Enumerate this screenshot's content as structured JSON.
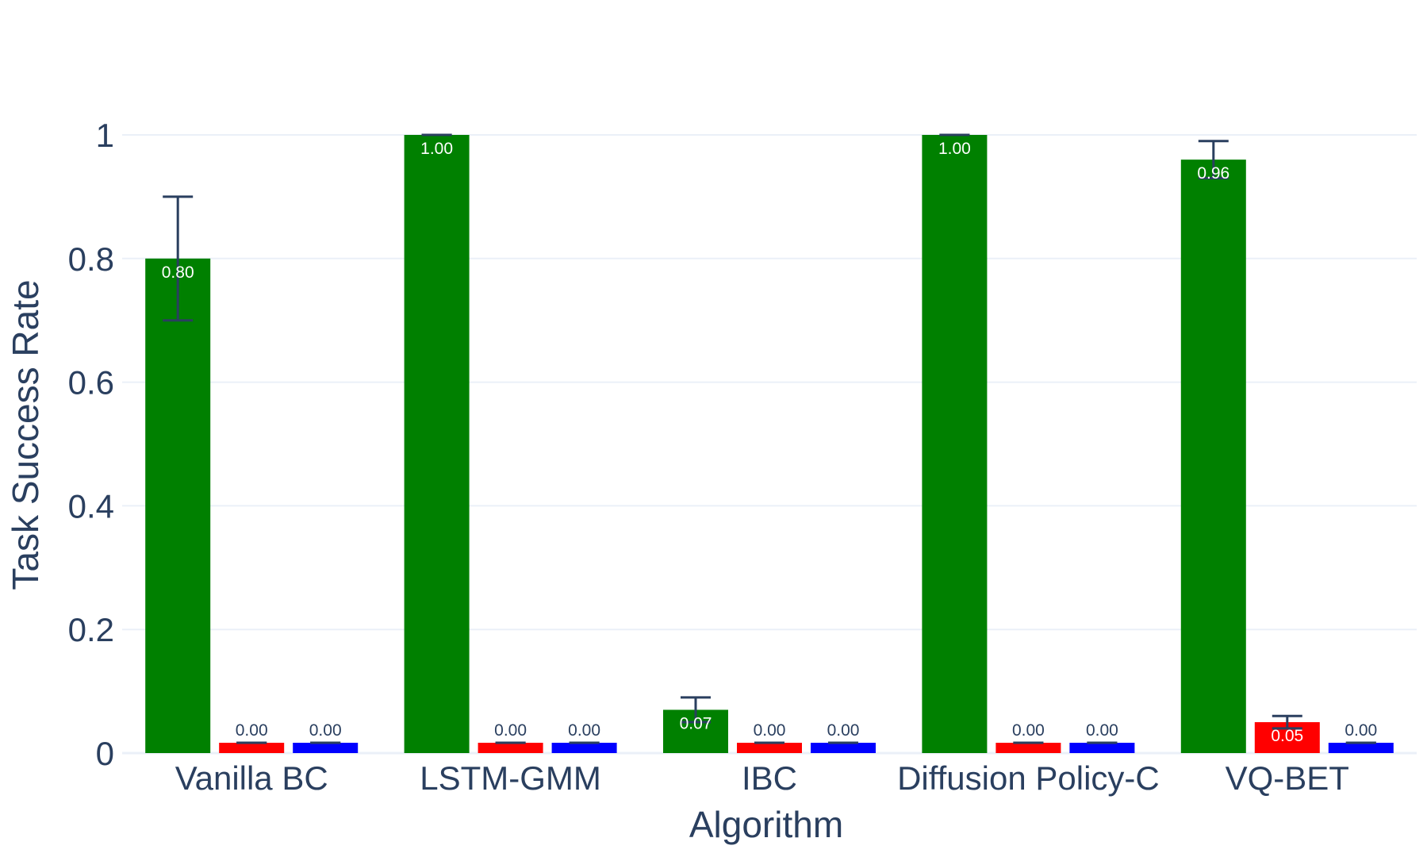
{
  "chart_data": {
    "type": "bar",
    "title": "",
    "xlabel": "Algorithm",
    "ylabel": "Task Success Rate",
    "categories": [
      "Vanilla BC",
      "LSTM-GMM",
      "IBC",
      "Diffusion Policy-C",
      "VQ-BET"
    ],
    "ylim": [
      0,
      1.0
    ],
    "yticks": [
      0,
      0.2,
      0.4,
      0.6,
      0.8,
      1
    ],
    "ytick_labels": [
      "0",
      "0.2",
      "0.4",
      "0.6",
      "0.8",
      "1"
    ],
    "grid": true,
    "legend": "none",
    "series": [
      {
        "color": "#008000",
        "values": [
          0.8,
          1.0,
          0.07,
          1.0,
          0.96
        ],
        "labels": [
          "0.80",
          "1.00",
          "0.07",
          "1.00",
          "0.96"
        ],
        "errors": [
          0.1,
          0.0,
          0.02,
          0.0,
          0.03
        ]
      },
      {
        "color": "#ff0000",
        "values": [
          0.0,
          0.0,
          0.0,
          0.0,
          0.05
        ],
        "labels": [
          "0.00",
          "0.00",
          "0.00",
          "0.00",
          "0.05"
        ],
        "errors": [
          0.0,
          0.0,
          0.0,
          0.0,
          0.01
        ]
      },
      {
        "color": "#0000ff",
        "values": [
          0.0,
          0.0,
          0.0,
          0.0,
          0.0
        ],
        "labels": [
          "0.00",
          "0.00",
          "0.00",
          "0.00",
          "0.00"
        ],
        "errors": [
          0.0,
          0.0,
          0.0,
          0.0,
          0.0
        ]
      }
    ]
  }
}
